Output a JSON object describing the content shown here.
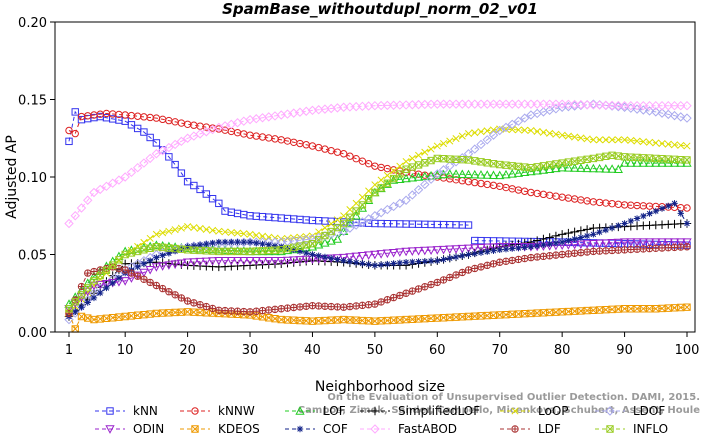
{
  "chart_data": {
    "type": "line",
    "title": "SpamBase_withoutdupl_norm_02_v01",
    "xlabel": "Neighborhood size",
    "ylabel": "Adjusted AP",
    "xlim": [
      0,
      100
    ],
    "ylim": [
      0,
      0.2
    ],
    "x_ticks": [
      1,
      10,
      20,
      30,
      40,
      50,
      60,
      70,
      80,
      90,
      100
    ],
    "x_tick_labels": [
      "1",
      "10",
      "20",
      "30",
      "40",
      "50",
      "60",
      "70",
      "80",
      "90",
      "100"
    ],
    "y_ticks": [
      0,
      0.05,
      0.1,
      0.15,
      0.2
    ],
    "y_tick_labels": [
      "0.00",
      "0.05",
      "0.10",
      "0.15",
      "0.20"
    ],
    "grid": false,
    "legend_position": "bottom",
    "watermark_lines": [
      "Campos, Zimek, Sander, Campello, Micenkova, Schubert, Assent, Houle",
      "On the Evaluation of Unsupervised Outlier Detection. DAMI, 2015."
    ],
    "series": [
      {
        "name": "kNN",
        "color": "#3333ee",
        "marker": "square",
        "x_end": 65,
        "keys": [
          [
            1,
            0.123
          ],
          [
            2,
            0.142
          ],
          [
            3,
            0.137
          ],
          [
            6,
            0.139
          ],
          [
            10,
            0.136
          ],
          [
            13,
            0.129
          ],
          [
            15,
            0.122
          ],
          [
            17,
            0.113
          ],
          [
            18,
            0.108
          ],
          [
            20,
            0.097
          ],
          [
            22,
            0.092
          ],
          [
            24,
            0.086
          ],
          [
            25,
            0.083
          ],
          [
            26,
            0.078
          ],
          [
            30,
            0.075
          ],
          [
            40,
            0.072
          ],
          [
            50,
            0.07
          ],
          [
            65,
            0.069
          ]
        ],
        "tail_keys": [
          [
            66,
            0.059
          ],
          [
            80,
            0.058
          ],
          [
            100,
            0.056
          ]
        ]
      },
      {
        "name": "kNNW",
        "color": "#dd2222",
        "marker": "circle",
        "keys": [
          [
            1,
            0.13
          ],
          [
            2,
            0.128
          ],
          [
            3,
            0.139
          ],
          [
            7,
            0.141
          ],
          [
            10,
            0.14
          ],
          [
            15,
            0.138
          ],
          [
            20,
            0.134
          ],
          [
            25,
            0.131
          ],
          [
            30,
            0.127
          ],
          [
            35,
            0.124
          ],
          [
            40,
            0.12
          ],
          [
            45,
            0.115
          ],
          [
            50,
            0.107
          ],
          [
            55,
            0.103
          ],
          [
            60,
            0.1
          ],
          [
            65,
            0.097
          ],
          [
            70,
            0.094
          ],
          [
            75,
            0.09
          ],
          [
            80,
            0.087
          ],
          [
            85,
            0.084
          ],
          [
            90,
            0.082
          ],
          [
            95,
            0.081
          ],
          [
            100,
            0.08
          ]
        ]
      },
      {
        "name": "LOF",
        "color": "#22cc22",
        "marker": "triangle-up",
        "keys": [
          [
            1,
            0.018
          ],
          [
            5,
            0.036
          ],
          [
            10,
            0.052
          ],
          [
            15,
            0.056
          ],
          [
            20,
            0.054
          ],
          [
            25,
            0.053
          ],
          [
            30,
            0.052
          ],
          [
            35,
            0.052
          ],
          [
            40,
            0.055
          ],
          [
            44,
            0.06
          ],
          [
            47,
            0.075
          ],
          [
            50,
            0.09
          ],
          [
            53,
            0.098
          ],
          [
            57,
            0.1
          ],
          [
            62,
            0.102
          ],
          [
            70,
            0.101
          ],
          [
            80,
            0.106
          ],
          [
            89,
            0.105
          ],
          [
            90,
            0.109
          ],
          [
            100,
            0.109
          ]
        ]
      },
      {
        "name": "SimplifiedLOF",
        "color": "#000000",
        "marker": "plus",
        "keys": [
          [
            1,
            0.01
          ],
          [
            5,
            0.025
          ],
          [
            10,
            0.044
          ],
          [
            15,
            0.045
          ],
          [
            20,
            0.043
          ],
          [
            25,
            0.042
          ],
          [
            30,
            0.043
          ],
          [
            35,
            0.044
          ],
          [
            40,
            0.046
          ],
          [
            45,
            0.045
          ],
          [
            50,
            0.043
          ],
          [
            55,
            0.043
          ],
          [
            60,
            0.046
          ],
          [
            65,
            0.05
          ],
          [
            70,
            0.055
          ],
          [
            75,
            0.058
          ],
          [
            80,
            0.063
          ],
          [
            85,
            0.067
          ],
          [
            90,
            0.068
          ],
          [
            95,
            0.069
          ],
          [
            100,
            0.07
          ]
        ]
      },
      {
        "name": "LoOP",
        "color": "#dddd00",
        "marker": "x",
        "keys": [
          [
            1,
            0.012
          ],
          [
            5,
            0.03
          ],
          [
            10,
            0.05
          ],
          [
            15,
            0.063
          ],
          [
            20,
            0.068
          ],
          [
            25,
            0.065
          ],
          [
            30,
            0.063
          ],
          [
            35,
            0.06
          ],
          [
            40,
            0.062
          ],
          [
            45,
            0.075
          ],
          [
            50,
            0.095
          ],
          [
            55,
            0.11
          ],
          [
            60,
            0.12
          ],
          [
            65,
            0.128
          ],
          [
            70,
            0.131
          ],
          [
            75,
            0.13
          ],
          [
            80,
            0.127
          ],
          [
            85,
            0.124
          ],
          [
            90,
            0.124
          ],
          [
            95,
            0.122
          ],
          [
            100,
            0.12
          ]
        ]
      },
      {
        "name": "LDOF",
        "color": "#aaaaee",
        "marker": "diamond",
        "keys": [
          [
            1,
            0.008
          ],
          [
            5,
            0.025
          ],
          [
            10,
            0.04
          ],
          [
            15,
            0.05
          ],
          [
            20,
            0.055
          ],
          [
            25,
            0.057
          ],
          [
            30,
            0.058
          ],
          [
            35,
            0.058
          ],
          [
            40,
            0.06
          ],
          [
            45,
            0.065
          ],
          [
            50,
            0.075
          ],
          [
            55,
            0.085
          ],
          [
            60,
            0.102
          ],
          [
            65,
            0.115
          ],
          [
            70,
            0.13
          ],
          [
            75,
            0.14
          ],
          [
            80,
            0.145
          ],
          [
            85,
            0.147
          ],
          [
            90,
            0.145
          ],
          [
            95,
            0.142
          ],
          [
            100,
            0.138
          ]
        ]
      },
      {
        "name": "ODIN",
        "color": "#9922cc",
        "marker": "triangle-down",
        "keys": [
          [
            1,
            0.015
          ],
          [
            5,
            0.03
          ],
          [
            10,
            0.033
          ],
          [
            15,
            0.042
          ],
          [
            20,
            0.045
          ],
          [
            25,
            0.046
          ],
          [
            30,
            0.046
          ],
          [
            35,
            0.046
          ],
          [
            40,
            0.047
          ],
          [
            45,
            0.048
          ],
          [
            50,
            0.05
          ],
          [
            55,
            0.052
          ],
          [
            60,
            0.053
          ],
          [
            65,
            0.054
          ],
          [
            70,
            0.055
          ],
          [
            75,
            0.055
          ],
          [
            80,
            0.056
          ],
          [
            85,
            0.057
          ],
          [
            90,
            0.058
          ],
          [
            95,
            0.058
          ],
          [
            100,
            0.058
          ]
        ]
      },
      {
        "name": "KDEOS",
        "color": "#ee9900",
        "marker": "x-square",
        "keys": [
          [
            1,
            0.012
          ],
          [
            2,
            0.002
          ],
          [
            3,
            0.01
          ],
          [
            5,
            0.008
          ],
          [
            10,
            0.01
          ],
          [
            15,
            0.012
          ],
          [
            20,
            0.013
          ],
          [
            25,
            0.012
          ],
          [
            30,
            0.011
          ],
          [
            35,
            0.008
          ],
          [
            40,
            0.007
          ],
          [
            45,
            0.008
          ],
          [
            50,
            0.007
          ],
          [
            55,
            0.008
          ],
          [
            60,
            0.009
          ],
          [
            65,
            0.01
          ],
          [
            70,
            0.011
          ],
          [
            75,
            0.012
          ],
          [
            80,
            0.013
          ],
          [
            85,
            0.014
          ],
          [
            90,
            0.015
          ],
          [
            95,
            0.015
          ],
          [
            100,
            0.016
          ]
        ]
      },
      {
        "name": "COF",
        "color": "#112288",
        "marker": "star",
        "keys": [
          [
            1,
            0.01
          ],
          [
            5,
            0.022
          ],
          [
            10,
            0.038
          ],
          [
            15,
            0.048
          ],
          [
            20,
            0.055
          ],
          [
            25,
            0.058
          ],
          [
            30,
            0.058
          ],
          [
            35,
            0.055
          ],
          [
            40,
            0.05
          ],
          [
            45,
            0.046
          ],
          [
            50,
            0.043
          ],
          [
            55,
            0.045
          ],
          [
            60,
            0.046
          ],
          [
            65,
            0.05
          ],
          [
            70,
            0.053
          ],
          [
            75,
            0.055
          ],
          [
            80,
            0.058
          ],
          [
            85,
            0.063
          ],
          [
            90,
            0.07
          ],
          [
            95,
            0.078
          ],
          [
            98,
            0.083
          ],
          [
            100,
            0.07
          ]
        ]
      },
      {
        "name": "FastABOD",
        "color": "#ffaaff",
        "marker": "diamond",
        "keys": [
          [
            1,
            0.07
          ],
          [
            3,
            0.08
          ],
          [
            5,
            0.09
          ],
          [
            10,
            0.1
          ],
          [
            15,
            0.115
          ],
          [
            20,
            0.125
          ],
          [
            25,
            0.132
          ],
          [
            30,
            0.137
          ],
          [
            35,
            0.14
          ],
          [
            40,
            0.143
          ],
          [
            45,
            0.145
          ],
          [
            50,
            0.146
          ],
          [
            60,
            0.147
          ],
          [
            70,
            0.147
          ],
          [
            80,
            0.147
          ],
          [
            90,
            0.146
          ],
          [
            100,
            0.146
          ]
        ]
      },
      {
        "name": "LDF",
        "color": "#aa3333",
        "marker": "circle-plus",
        "keys": [
          [
            1,
            0.012
          ],
          [
            4,
            0.038
          ],
          [
            8,
            0.042
          ],
          [
            10,
            0.04
          ],
          [
            15,
            0.03
          ],
          [
            20,
            0.02
          ],
          [
            25,
            0.014
          ],
          [
            30,
            0.013
          ],
          [
            35,
            0.015
          ],
          [
            40,
            0.017
          ],
          [
            45,
            0.016
          ],
          [
            50,
            0.018
          ],
          [
            55,
            0.025
          ],
          [
            60,
            0.032
          ],
          [
            65,
            0.04
          ],
          [
            70,
            0.045
          ],
          [
            75,
            0.048
          ],
          [
            80,
            0.05
          ],
          [
            85,
            0.052
          ],
          [
            90,
            0.053
          ],
          [
            95,
            0.054
          ],
          [
            100,
            0.055
          ]
        ]
      },
      {
        "name": "INFLO",
        "color": "#99cc22",
        "marker": "x-square",
        "keys": [
          [
            1,
            0.015
          ],
          [
            5,
            0.033
          ],
          [
            10,
            0.05
          ],
          [
            15,
            0.055
          ],
          [
            20,
            0.053
          ],
          [
            25,
            0.052
          ],
          [
            30,
            0.052
          ],
          [
            35,
            0.053
          ],
          [
            40,
            0.057
          ],
          [
            45,
            0.07
          ],
          [
            50,
            0.09
          ],
          [
            55,
            0.105
          ],
          [
            60,
            0.112
          ],
          [
            65,
            0.111
          ],
          [
            70,
            0.108
          ],
          [
            75,
            0.106
          ],
          [
            80,
            0.109
          ],
          [
            85,
            0.112
          ],
          [
            88,
            0.114
          ],
          [
            90,
            0.113
          ],
          [
            100,
            0.111
          ]
        ]
      }
    ]
  }
}
